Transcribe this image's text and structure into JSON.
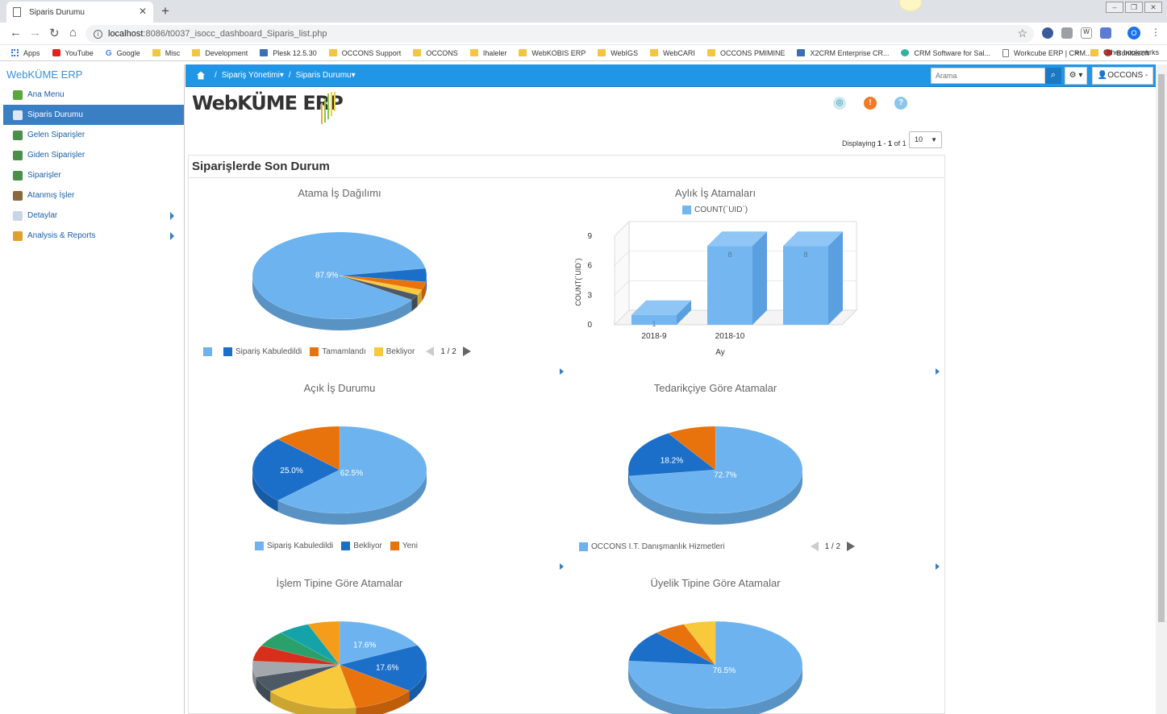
{
  "browser": {
    "tab_title": "Siparis Durumu",
    "url_host": "localhost",
    "url_path": ":8086/t0037_isocc_dashboard_Siparis_list.php",
    "bookmarks": [
      {
        "label": "Apps",
        "icon": "grid"
      },
      {
        "label": "YouTube",
        "icon": "red"
      },
      {
        "label": "Google",
        "icon": "g"
      },
      {
        "label": "Misc",
        "icon": "folder"
      },
      {
        "label": "Development",
        "icon": "folder"
      },
      {
        "label": "Plesk 12.5.30",
        "icon": "blue"
      },
      {
        "label": "OCCONS Support",
        "icon": "folder"
      },
      {
        "label": "OCCONS",
        "icon": "folder"
      },
      {
        "label": "Ihaleler",
        "icon": "folder"
      },
      {
        "label": "WebKOBIS ERP",
        "icon": "folder"
      },
      {
        "label": "WebIGS",
        "icon": "folder"
      },
      {
        "label": "WebCARI",
        "icon": "folder"
      },
      {
        "label": "OCCONS PMIMINE",
        "icon": "folder"
      },
      {
        "label": "X2CRM Enterprise CR...",
        "icon": "blue"
      },
      {
        "label": "CRM Software for Sal...",
        "icon": "teal"
      },
      {
        "label": "Workcube ERP | CRM...",
        "icon": "doc"
      },
      {
        "label": "Bonitasoft",
        "icon": "redb"
      }
    ],
    "bookmarks_more": "»",
    "other_bookmarks": "Other bookmarks",
    "profile_initial": "O"
  },
  "sidebar": {
    "brand": "WebKÜME ERP",
    "items": [
      {
        "label": "Ana Menu",
        "icon_color": "#5aa83b",
        "active": false,
        "submenu": false
      },
      {
        "label": "Siparis Durumu",
        "icon_color": "#dfe8f2",
        "active": true,
        "submenu": false
      },
      {
        "label": "Gelen Siparişler",
        "icon_color": "#4a8f4a",
        "active": false,
        "submenu": false
      },
      {
        "label": "Giden Siparişler",
        "icon_color": "#4a8f4a",
        "active": false,
        "submenu": false
      },
      {
        "label": "Siparişler",
        "icon_color": "#4a8f4a",
        "active": false,
        "submenu": false
      },
      {
        "label": "Atanmış İşler",
        "icon_color": "#8a6a3a",
        "active": false,
        "submenu": false
      },
      {
        "label": "Detaylar",
        "icon_color": "#c9d6e6",
        "active": false,
        "submenu": true
      },
      {
        "label": "Analysis & Reports",
        "icon_color": "#e0a030",
        "active": false,
        "submenu": true
      }
    ]
  },
  "appbar": {
    "breadcrumb": [
      "Sipariş Yönetimi",
      "Siparis Durumu"
    ],
    "search_placeholder": "Arama",
    "user_label": "OCCONS -"
  },
  "content": {
    "logo_text": "WebKÜME ERP",
    "displaying_prefix": "Displaying ",
    "displaying_from": "1",
    "displaying_dash": " - ",
    "displaying_to": "1",
    "displaying_of": " of ",
    "displaying_total": "1",
    "page_size": "10",
    "panel_title": "Siparişlerde Son Durum"
  },
  "chart_data": [
    {
      "type": "pie",
      "title": "Atama İş Dağılımı",
      "labels": [
        "",
        "Sipariş Kabuledildi",
        "Tamamlandı",
        "Bekliyor",
        ""
      ],
      "values": [
        87.9,
        5.0,
        3.0,
        2.0,
        2.1
      ],
      "colors": [
        "#6cb3ef",
        "#1c6fc9",
        "#e8720c",
        "#f7c93b",
        "#4d5a66"
      ],
      "data_labels": [
        "87.9%",
        "",
        "",
        "",
        ""
      ],
      "legend": [
        "",
        "Sipariş Kabuledildi",
        "Tamamlandı",
        "Bekliyor"
      ],
      "legend_page": "1 / 2"
    },
    {
      "type": "bar",
      "title": "Aylık İş Atamaları",
      "series": [
        {
          "name": "COUNT(`UID`)",
          "values": [
            1,
            8,
            8
          ]
        }
      ],
      "categories": [
        "2018-9",
        "2018-10",
        ""
      ],
      "xlabel": "Ay",
      "ylabel": "COUNT(`UID`)",
      "yticks": [
        "0",
        "3",
        "6",
        "9"
      ],
      "ylim": [
        0,
        9
      ]
    },
    {
      "type": "pie",
      "title": "Açık İş Durumu",
      "labels": [
        "Sipariş Kabuledildi",
        "Bekliyor",
        "Yeni"
      ],
      "values": [
        62.5,
        25.0,
        12.5
      ],
      "colors": [
        "#6cb3ef",
        "#1c6fc9",
        "#e8720c"
      ],
      "data_labels": [
        "62.5%",
        "25.0%",
        ""
      ],
      "legend": [
        "Sipariş Kabuledildi",
        "Bekliyor",
        "Yeni"
      ]
    },
    {
      "type": "pie",
      "title": "Tedarikçiye Göre Atamalar",
      "labels": [
        "OCCONS I.T. Danışmanlık Hizmetleri",
        "",
        ""
      ],
      "values": [
        72.7,
        18.2,
        9.1
      ],
      "colors": [
        "#6cb3ef",
        "#1c6fc9",
        "#e8720c"
      ],
      "data_labels": [
        "72.7%",
        "18.2%",
        ""
      ],
      "legend": [
        "OCCONS I.T. Danışmanlık Hizmetleri"
      ],
      "legend_page": "1 / 2"
    },
    {
      "type": "pie",
      "title": "İşlem Tipine Göre Atamalar",
      "labels": [
        "",
        "",
        "",
        "",
        "",
        "",
        "",
        "",
        "",
        ""
      ],
      "values": [
        17.6,
        17.6,
        11.8,
        17.6,
        5.9,
        5.9,
        5.9,
        5.9,
        5.9,
        5.9
      ],
      "colors": [
        "#6cb3ef",
        "#1c6fc9",
        "#e8720c",
        "#f7c93b",
        "#4d5a66",
        "#a3a8ad",
        "#d62f1b",
        "#2aa06a",
        "#14a3a8",
        "#f59c1a"
      ],
      "data_labels": [
        "17.6%",
        "17.6%",
        "",
        "",
        "",
        "",
        "",
        "",
        "",
        ""
      ]
    },
    {
      "type": "pie",
      "title": "Üyelik Tipine Göre Atamalar",
      "labels": [
        "",
        "",
        "",
        ""
      ],
      "values": [
        76.5,
        11.8,
        5.9,
        5.9
      ],
      "colors": [
        "#6cb3ef",
        "#1c6fc9",
        "#e8720c",
        "#f7c93b"
      ],
      "data_labels": [
        "76.5%",
        "",
        "",
        ""
      ]
    }
  ]
}
